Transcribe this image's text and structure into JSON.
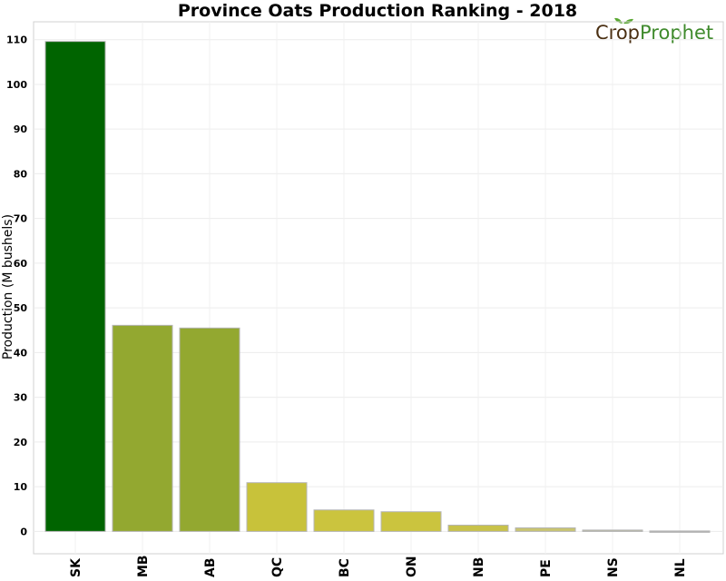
{
  "chart_data": {
    "type": "bar",
    "title": "Province Oats Production Ranking - 2018",
    "xlabel": "",
    "ylabel": "Production (M bushels)",
    "categories": [
      "SK",
      "MB",
      "AB",
      "QC",
      "BC",
      "ON",
      "NB",
      "PE",
      "NS",
      "NL"
    ],
    "values": [
      109.6,
      46.1,
      45.5,
      10.9,
      4.8,
      4.4,
      1.4,
      0.8,
      0.3,
      0.1
    ],
    "ylim": [
      -5,
      114
    ],
    "yticks": [
      "0",
      "10",
      "20",
      "30",
      "40",
      "50",
      "60",
      "70",
      "80",
      "90",
      "100",
      "110"
    ],
    "grid": true,
    "legend": "none",
    "colors": [
      "#006400",
      "#93a830",
      "#93a830",
      "#c8c23a",
      "#cbc43e",
      "#cbc43e",
      "#c8c24a",
      "#c9c470",
      "#b8b8a0",
      "#b0b0b0"
    ]
  },
  "logo": {
    "crop": "Crop",
    "prophet": "Prophet",
    "crop_color": "#4a2f12",
    "prophet_color": "#3f8a2c",
    "leaf_color": "#5aa832"
  }
}
